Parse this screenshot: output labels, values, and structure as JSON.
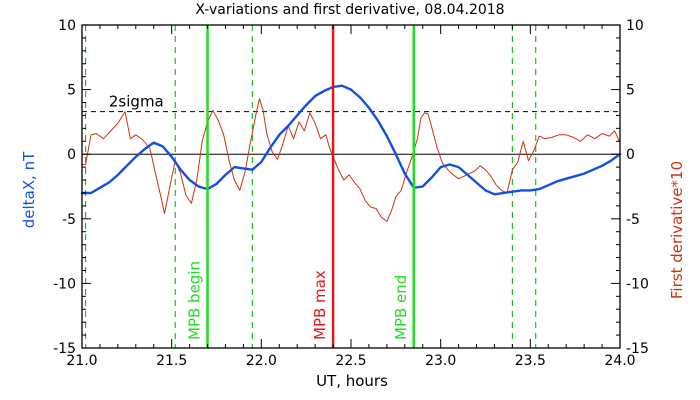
{
  "chart_data": {
    "type": "line",
    "title": "X-variations and first derivative, 08.04.2018",
    "xlabel": "UT, hours",
    "ylabel_left": "deltaX, nT",
    "ylabel_right": "First derivative*10",
    "xlim": [
      21.0,
      24.0
    ],
    "ylim": [
      -15,
      10
    ],
    "x_ticks": [
      "21.0",
      "21.5",
      "22.0",
      "22.5",
      "23.0",
      "23.5",
      "24.0"
    ],
    "y_ticks": [
      "10",
      "5",
      "0",
      "-5",
      "-10",
      "-15"
    ],
    "colors": {
      "series_x": "#1450e0",
      "series_d": "#d03010",
      "mpb_begin": "#22dd22",
      "mpb_max": "#e01818",
      "mpb_end": "#22dd22",
      "dashed_green": "#22bb22",
      "axis": "#000000",
      "threshold": "#000000"
    },
    "threshold": {
      "label": "2sigma",
      "value": 3.3
    },
    "vertical_markers": [
      {
        "label": "MPB begin",
        "x": 21.7,
        "color": "#22dd22"
      },
      {
        "label": "MPB max",
        "x": 22.4,
        "color": "#e01818"
      },
      {
        "label": "MPB end",
        "x": 22.85,
        "color": "#22dd22"
      }
    ],
    "dashed_lines": [
      21.02,
      21.52,
      21.95,
      23.4,
      23.53
    ],
    "series": [
      {
        "name": "deltaX",
        "x": [
          21.0,
          21.05,
          21.1,
          21.15,
          21.2,
          21.25,
          21.3,
          21.35,
          21.4,
          21.45,
          21.5,
          21.55,
          21.6,
          21.65,
          21.7,
          21.75,
          21.8,
          21.85,
          21.9,
          21.95,
          22.0,
          22.05,
          22.1,
          22.15,
          22.2,
          22.25,
          22.3,
          22.35,
          22.4,
          22.45,
          22.5,
          22.55,
          22.6,
          22.65,
          22.7,
          22.75,
          22.8,
          22.85,
          22.9,
          22.95,
          23.0,
          23.05,
          23.1,
          23.15,
          23.2,
          23.25,
          23.3,
          23.35,
          23.4,
          23.45,
          23.5,
          23.55,
          23.6,
          23.65,
          23.7,
          23.75,
          23.8,
          23.85,
          23.9,
          23.95,
          24.0
        ],
        "values": [
          -3.0,
          -3.0,
          -2.6,
          -2.2,
          -1.6,
          -0.9,
          -0.2,
          0.4,
          0.9,
          0.6,
          -0.2,
          -1.2,
          -2.0,
          -2.5,
          -2.7,
          -2.3,
          -1.6,
          -1.0,
          -1.1,
          -1.2,
          -0.6,
          0.5,
          1.5,
          2.2,
          3.0,
          3.8,
          4.5,
          4.9,
          5.2,
          5.3,
          5.0,
          4.4,
          3.6,
          2.6,
          1.4,
          0.0,
          -1.5,
          -2.6,
          -2.5,
          -1.8,
          -1.0,
          -0.8,
          -1.0,
          -1.6,
          -2.2,
          -2.8,
          -3.1,
          -3.0,
          -2.9,
          -2.8,
          -2.8,
          -2.7,
          -2.4,
          -2.1,
          -1.9,
          -1.7,
          -1.5,
          -1.2,
          -0.9,
          -0.5,
          0.0
        ]
      },
      {
        "name": "First derivative*10",
        "x": [
          21.0,
          21.02,
          21.05,
          21.08,
          21.12,
          21.16,
          21.2,
          21.24,
          21.27,
          21.3,
          21.34,
          21.38,
          21.41,
          21.44,
          21.46,
          21.48,
          21.5,
          21.52,
          21.55,
          21.58,
          21.61,
          21.64,
          21.67,
          21.7,
          21.73,
          21.76,
          21.79,
          21.82,
          21.85,
          21.88,
          21.91,
          21.94,
          21.97,
          21.99,
          22.01,
          22.03,
          22.06,
          22.09,
          22.12,
          22.15,
          22.18,
          22.21,
          22.24,
          22.27,
          22.3,
          22.33,
          22.36,
          22.38,
          22.4,
          22.43,
          22.46,
          22.49,
          22.52,
          22.55,
          22.58,
          22.61,
          22.64,
          22.67,
          22.7,
          22.73,
          22.75,
          22.78,
          22.81,
          22.84,
          22.87,
          22.89,
          22.91,
          22.93,
          22.95,
          22.98,
          23.01,
          23.04,
          23.07,
          23.1,
          23.13,
          23.16,
          23.19,
          23.22,
          23.25,
          23.28,
          23.31,
          23.34,
          23.37,
          23.4,
          23.43,
          23.46,
          23.49,
          23.52,
          23.55,
          23.58,
          23.62,
          23.66,
          23.7,
          23.74,
          23.78,
          23.82,
          23.86,
          23.9,
          23.94,
          23.97,
          24.0
        ],
        "values": [
          -0.8,
          -0.8,
          1.5,
          1.6,
          1.2,
          1.8,
          2.4,
          3.3,
          1.2,
          1.5,
          1.1,
          0.4,
          -1.5,
          -3.3,
          -4.6,
          -3.2,
          -1.8,
          -0.5,
          -1.5,
          -3.2,
          -3.8,
          -2.0,
          1.0,
          2.5,
          3.4,
          2.6,
          1.5,
          -0.5,
          -2.0,
          -2.8,
          -1.3,
          1.0,
          3.1,
          4.3,
          3.4,
          1.6,
          0.2,
          -0.4,
          0.8,
          2.2,
          1.2,
          2.5,
          1.8,
          3.2,
          2.4,
          1.2,
          1.5,
          0.5,
          -0.2,
          -1.2,
          -2.0,
          -1.6,
          -2.2,
          -2.7,
          -3.6,
          -4.1,
          -4.2,
          -4.9,
          -5.2,
          -4.2,
          -3.3,
          -2.8,
          -1.4,
          -0.2,
          1.2,
          2.8,
          3.2,
          3.1,
          2.1,
          0.5,
          -0.7,
          -1.2,
          -1.6,
          -1.9,
          -1.7,
          -1.5,
          -1.3,
          -0.9,
          -1.2,
          -1.7,
          -2.4,
          -2.8,
          -3.0,
          -1.2,
          -0.6,
          1.0,
          -0.5,
          0.3,
          1.4,
          1.2,
          1.3,
          1.5,
          1.5,
          1.3,
          1.0,
          1.5,
          1.2,
          1.6,
          1.4,
          1.8,
          0.9
        ]
      }
    ]
  }
}
